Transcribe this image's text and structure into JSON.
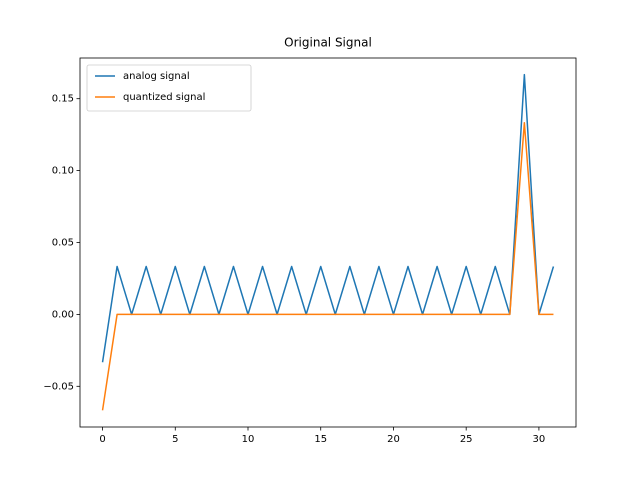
{
  "chart_data": {
    "type": "line",
    "title": "Original Signal",
    "x": [
      0,
      1,
      2,
      3,
      4,
      5,
      6,
      7,
      8,
      9,
      10,
      11,
      12,
      13,
      14,
      15,
      16,
      17,
      18,
      19,
      20,
      21,
      22,
      23,
      24,
      25,
      26,
      27,
      28,
      29,
      30,
      31
    ],
    "series": [
      {
        "name": "analog signal",
        "color": "#1f77b4",
        "values": [
          -0.0333,
          0.0333,
          0,
          0.0333,
          0,
          0.0333,
          0,
          0.0333,
          0,
          0.0333,
          0,
          0.0333,
          0,
          0.0333,
          0,
          0.0333,
          0,
          0.0333,
          0,
          0.0333,
          0,
          0.0333,
          0,
          0.0333,
          0,
          0.0333,
          0,
          0.0333,
          0,
          0.1667,
          0,
          0.0333
        ]
      },
      {
        "name": "quantized signal",
        "color": "#ff7f0e",
        "values": [
          -0.0667,
          0,
          0,
          0,
          0,
          0,
          0,
          0,
          0,
          0,
          0,
          0,
          0,
          0,
          0,
          0,
          0,
          0,
          0,
          0,
          0,
          0,
          0,
          0,
          0,
          0,
          0,
          0,
          0,
          0.1333,
          0,
          0
        ]
      }
    ],
    "xlim": [
      -1.55,
      32.55
    ],
    "xticks": [
      0,
      5,
      10,
      15,
      20,
      25,
      30
    ],
    "ylim": [
      -0.0783,
      0.1783
    ],
    "yticks": [
      {
        "value": -0.05,
        "label": "−0.05"
      },
      {
        "value": 0,
        "label": "0.00"
      },
      {
        "value": 0.05,
        "label": "0.05"
      },
      {
        "value": 0.1,
        "label": "0.10"
      },
      {
        "value": 0.15,
        "label": "0.15"
      }
    ],
    "legend": "upper left"
  }
}
